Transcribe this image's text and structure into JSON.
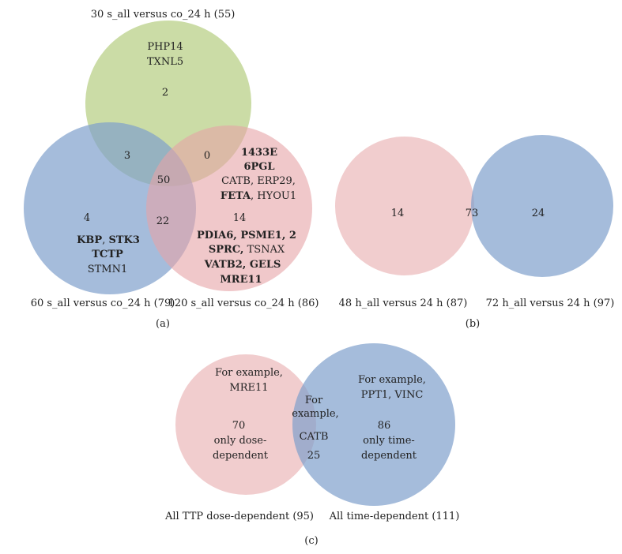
{
  "colors": {
    "green": "#b5cd80",
    "pink": "#e6a4a6",
    "blue": "#7f9fcc"
  },
  "panel_a": {
    "label": "(a)",
    "set_top": "30 s_all versus co_24 h (55)",
    "set_left": "60 s_all versus co_24 h (79)",
    "set_right": "120 s_all versus co_24 h (86)",
    "top_only": {
      "proteins": [
        "PHP14",
        "TXNL5"
      ],
      "count": "2"
    },
    "top_left": "3",
    "top_right": "0",
    "center": "50",
    "left_right": "22",
    "left_only": {
      "count": "4",
      "kbp": "KBP",
      "sep": ", ",
      "stk3": "STK3",
      "tctp": "TCTP",
      "stmn1": "STMN1"
    },
    "right_only": {
      "count": "14",
      "l1433e": "1433E",
      "l6pgl": "6PGL",
      "plain1": "CATB, ERP29,",
      "feta": "FETA",
      "hyou1": ", HYOU1",
      "bold2": "PDIA6, PSME1, 2",
      "sprc": "SPRC,",
      "tsnax": " TSNAX",
      "bold3": "VATB2, GELS",
      "mre11": "MRE11"
    }
  },
  "panel_b": {
    "label": "(b)",
    "set_left": "48 h_all versus 24 h (87)",
    "set_right": "72 h_all versus 24 h (97)",
    "left_only": "14",
    "overlap": "73",
    "right_only": "24"
  },
  "panel_c": {
    "label": "(c)",
    "set_left": "All TTP dose-dependent (95)",
    "set_right": "All time-dependent (111)",
    "left": {
      "l1": "For example,",
      "l2": "MRE11",
      "count": "70",
      "d1": "only dose-",
      "d2": "dependent"
    },
    "overlap": {
      "l1": "For",
      "l2": "example,",
      "l3": "CATB",
      "count": "25"
    },
    "right": {
      "l1": "For example,",
      "l2": "PPT1, VINC",
      "count": "86",
      "d1": "only time-",
      "d2": "dependent"
    }
  }
}
